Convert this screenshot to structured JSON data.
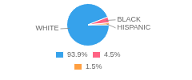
{
  "chart_data": {
    "type": "pie",
    "categories": [
      "WHITE",
      "BLACK",
      "HISPANIC"
    ],
    "values": [
      93.9,
      4.5,
      1.5
    ],
    "value_labels": [
      "93.9%",
      "4.5%",
      "1.5%"
    ],
    "legend": "bottom"
  }
}
